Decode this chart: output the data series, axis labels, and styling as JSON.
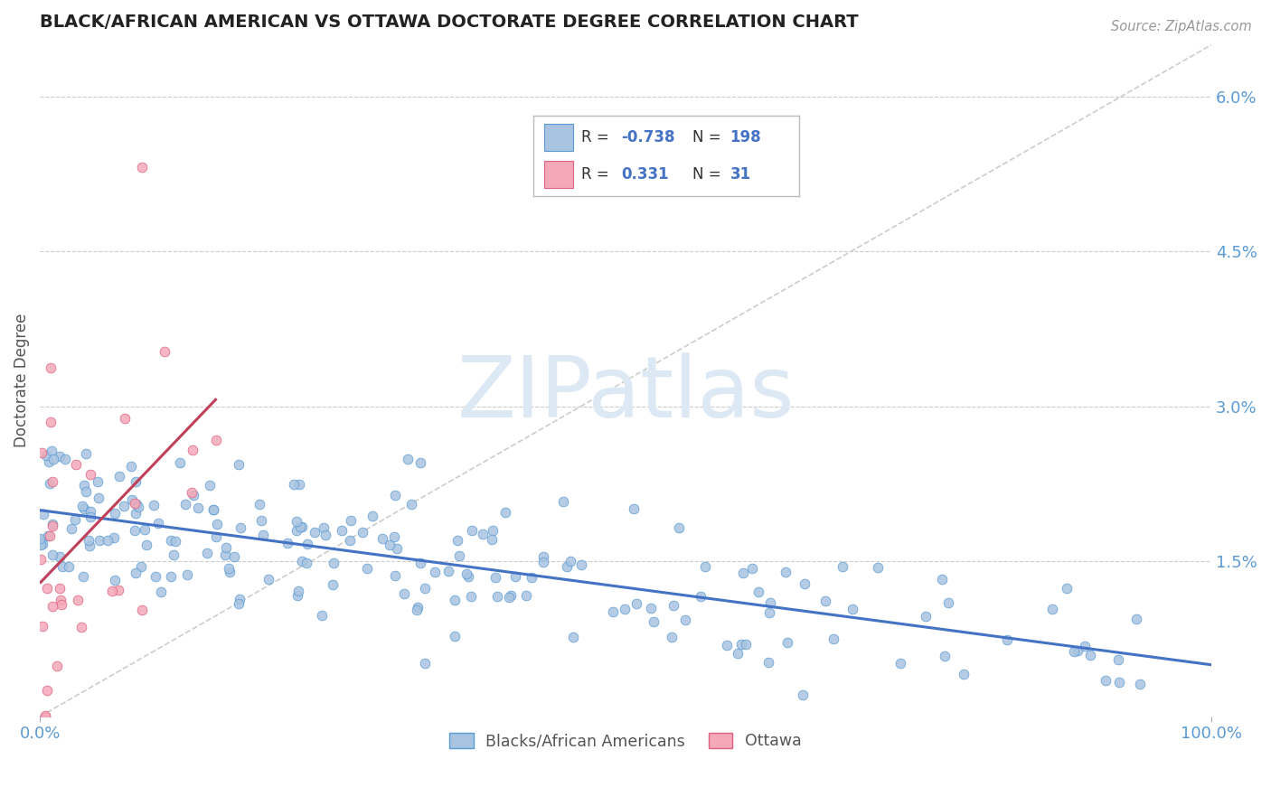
{
  "title": "BLACK/AFRICAN AMERICAN VS OTTAWA DOCTORATE DEGREE CORRELATION CHART",
  "source": "Source: ZipAtlas.com",
  "xlabel_blue": "Blacks/African Americans",
  "xlabel_pink": "Ottawa",
  "ylabel": "Doctorate Degree",
  "blue_R": -0.738,
  "blue_N": 198,
  "pink_R": 0.331,
  "pink_N": 31,
  "blue_color": "#a8c4e0",
  "blue_edge_color": "#5b9bd5",
  "pink_color": "#f4a8b8",
  "pink_edge_color": "#e06080",
  "blue_line_color": "#4472c4",
  "pink_line_color": "#c0405a",
  "title_color": "#222222",
  "axis_tick_color": "#5b9bd5",
  "legend_value_color": "#4472c4",
  "watermark_color": "#dde8f5",
  "background_color": "#ffffff",
  "xlim": [
    0,
    100
  ],
  "ylim": [
    0,
    6.5
  ],
  "yticks": [
    1.5,
    3.0,
    4.5,
    6.0
  ],
  "xticks": [
    0,
    100
  ],
  "seed": 12345
}
